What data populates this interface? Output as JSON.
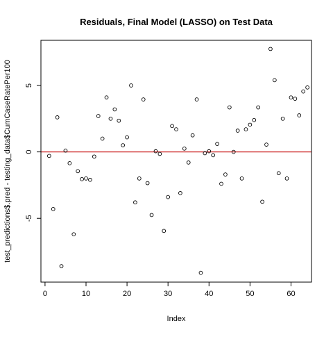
{
  "chart_data": {
    "type": "scatter",
    "title": "Residuals, Final Model (LASSO) on Test Data",
    "xlabel": "Index",
    "ylabel": "test_predictions$.pred - testing_data$CumCaseRatePer100",
    "xlim": [
      -1,
      65
    ],
    "ylim": [
      -9.8,
      8.4
    ],
    "x_ticks": [
      0,
      10,
      20,
      30,
      40,
      50,
      60
    ],
    "x_tick_labels": [
      "0",
      "10",
      "20",
      "30",
      "40",
      "50",
      "60"
    ],
    "y_ticks": [
      -5,
      0,
      5
    ],
    "y_tick_labels": [
      "-5",
      "0",
      "5"
    ],
    "reference_line": {
      "y": 0,
      "color": "#cc2222"
    },
    "point_color": "#000000",
    "grid": false,
    "points": [
      {
        "x": 1,
        "y": -0.3
      },
      {
        "x": 2,
        "y": -4.3
      },
      {
        "x": 3,
        "y": 2.6
      },
      {
        "x": 4,
        "y": -8.6
      },
      {
        "x": 5,
        "y": 0.1
      },
      {
        "x": 6,
        "y": -0.85
      },
      {
        "x": 7,
        "y": -6.2
      },
      {
        "x": 8,
        "y": -1.45
      },
      {
        "x": 9,
        "y": -2.05
      },
      {
        "x": 10,
        "y": -2.0
      },
      {
        "x": 11,
        "y": -2.1
      },
      {
        "x": 12,
        "y": -0.35
      },
      {
        "x": 13,
        "y": 2.7
      },
      {
        "x": 14,
        "y": 1.0
      },
      {
        "x": 15,
        "y": 4.1
      },
      {
        "x": 16,
        "y": 2.5
      },
      {
        "x": 17,
        "y": 3.2
      },
      {
        "x": 18,
        "y": 2.35
      },
      {
        "x": 19,
        "y": 0.5
      },
      {
        "x": 20,
        "y": 1.1
      },
      {
        "x": 21,
        "y": 5.0
      },
      {
        "x": 22,
        "y": -3.8
      },
      {
        "x": 23,
        "y": -2.0
      },
      {
        "x": 24,
        "y": 3.95
      },
      {
        "x": 25,
        "y": -2.35
      },
      {
        "x": 26,
        "y": -4.75
      },
      {
        "x": 27,
        "y": 0.05
      },
      {
        "x": 28,
        "y": -0.15
      },
      {
        "x": 29,
        "y": -5.95
      },
      {
        "x": 30,
        "y": -3.4
      },
      {
        "x": 31,
        "y": 1.95
      },
      {
        "x": 32,
        "y": 1.7
      },
      {
        "x": 33,
        "y": -3.1
      },
      {
        "x": 34,
        "y": 0.25
      },
      {
        "x": 35,
        "y": -0.8
      },
      {
        "x": 36,
        "y": 1.25
      },
      {
        "x": 37,
        "y": 3.95
      },
      {
        "x": 38,
        "y": -9.1
      },
      {
        "x": 39,
        "y": -0.1
      },
      {
        "x": 40,
        "y": 0.05
      },
      {
        "x": 41,
        "y": -0.25
      },
      {
        "x": 42,
        "y": 0.6
      },
      {
        "x": 43,
        "y": -2.4
      },
      {
        "x": 44,
        "y": -1.7
      },
      {
        "x": 45,
        "y": 3.35
      },
      {
        "x": 46,
        "y": 0.0
      },
      {
        "x": 47,
        "y": 1.6
      },
      {
        "x": 48,
        "y": -2.0
      },
      {
        "x": 49,
        "y": 1.7
      },
      {
        "x": 50,
        "y": 2.05
      },
      {
        "x": 51,
        "y": 2.4
      },
      {
        "x": 52,
        "y": 3.35
      },
      {
        "x": 53,
        "y": -3.75
      },
      {
        "x": 54,
        "y": 0.55
      },
      {
        "x": 55,
        "y": 7.75
      },
      {
        "x": 56,
        "y": 5.4
      },
      {
        "x": 57,
        "y": -1.6
      },
      {
        "x": 58,
        "y": 2.5
      },
      {
        "x": 59,
        "y": -2.0
      },
      {
        "x": 60,
        "y": 4.1
      },
      {
        "x": 61,
        "y": 4.0
      },
      {
        "x": 62,
        "y": 2.75
      },
      {
        "x": 63,
        "y": 4.55
      },
      {
        "x": 64,
        "y": 4.85
      }
    ]
  }
}
